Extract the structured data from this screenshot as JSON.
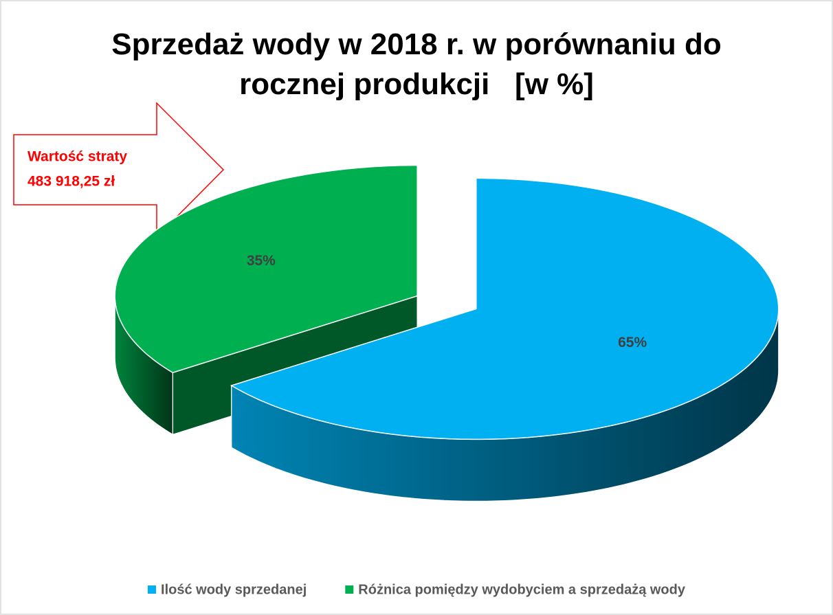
{
  "chart_data": {
    "type": "pie3d",
    "title": "Sprzedaż wody w 2018 r. w porównaniu do rocznej produkcji   [w %]",
    "categories": [
      "Ilość wody sprzedanej",
      "Różnica pomiędzy wydobyciem a sprzedażą wody"
    ],
    "values": [
      65,
      35
    ],
    "value_labels": [
      "65%",
      "35%"
    ],
    "colors": [
      "#00b0f0",
      "#00b050"
    ],
    "annotation": [
      "Wartość straty",
      "483 918,25 zł"
    ],
    "legend": "bottom"
  }
}
